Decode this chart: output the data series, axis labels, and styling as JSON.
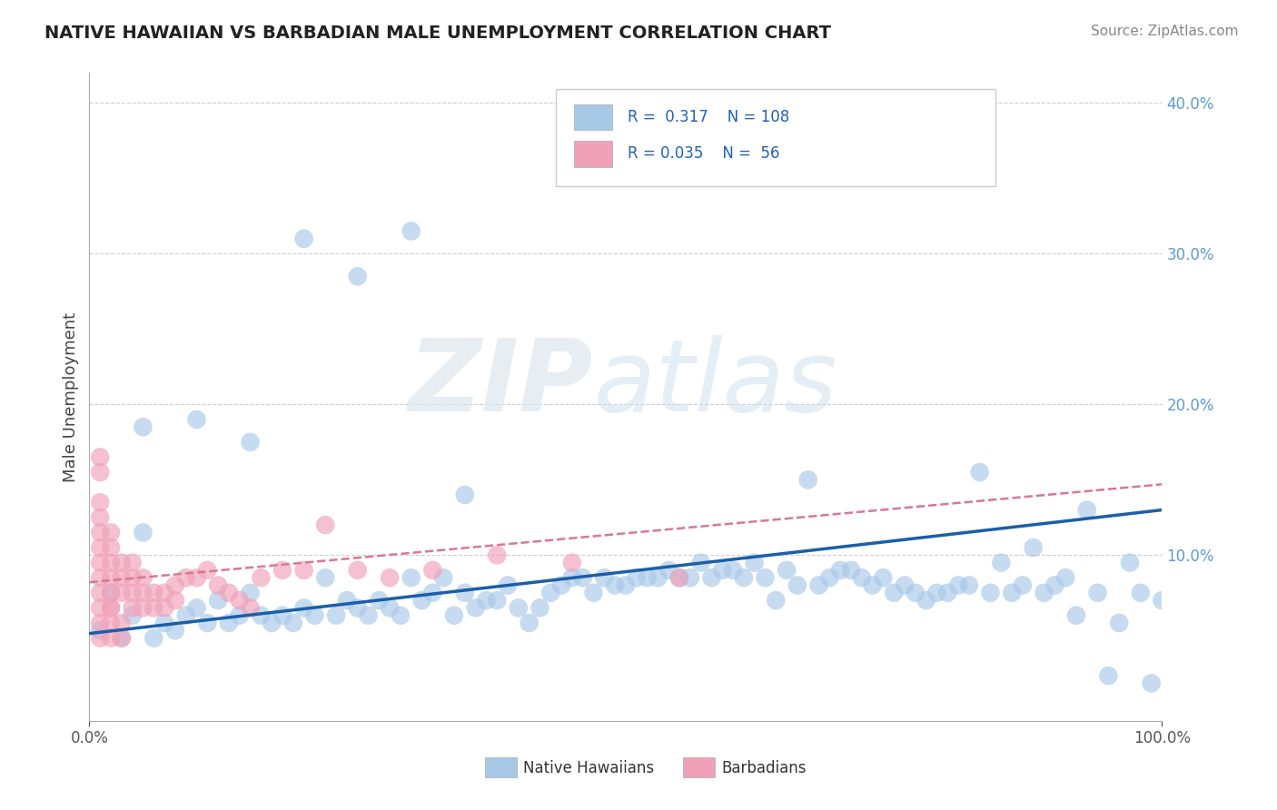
{
  "title": "NATIVE HAWAIIAN VS BARBADIAN MALE UNEMPLOYMENT CORRELATION CHART",
  "source": "Source: ZipAtlas.com",
  "ylabel": "Male Unemployment",
  "xlim": [
    0.0,
    1.0
  ],
  "ylim": [
    -0.01,
    0.42
  ],
  "grid_color": "#c8c8c8",
  "background_color": "#ffffff",
  "color_blue": "#a8c8e8",
  "color_pink": "#f0a0b8",
  "trendline_blue": "#1a5fa8",
  "trendline_pink": "#d87890",
  "label_blue": "Native Hawaiians",
  "label_pink": "Barbadians",
  "blue_slope": 0.082,
  "blue_intercept": 0.048,
  "pink_slope": 0.065,
  "pink_intercept": 0.082,
  "blue_points_x": [
    0.01,
    0.02,
    0.03,
    0.04,
    0.05,
    0.06,
    0.07,
    0.08,
    0.09,
    0.1,
    0.11,
    0.12,
    0.13,
    0.14,
    0.15,
    0.16,
    0.17,
    0.18,
    0.19,
    0.2,
    0.21,
    0.22,
    0.23,
    0.24,
    0.25,
    0.26,
    0.27,
    0.28,
    0.29,
    0.3,
    0.31,
    0.32,
    0.33,
    0.34,
    0.35,
    0.36,
    0.37,
    0.38,
    0.39,
    0.4,
    0.41,
    0.42,
    0.43,
    0.44,
    0.45,
    0.46,
    0.47,
    0.48,
    0.49,
    0.5,
    0.51,
    0.52,
    0.53,
    0.54,
    0.55,
    0.56,
    0.57,
    0.58,
    0.59,
    0.6,
    0.61,
    0.62,
    0.63,
    0.64,
    0.65,
    0.66,
    0.67,
    0.68,
    0.69,
    0.7,
    0.71,
    0.72,
    0.73,
    0.74,
    0.75,
    0.76,
    0.77,
    0.78,
    0.79,
    0.8,
    0.81,
    0.82,
    0.83,
    0.84,
    0.85,
    0.86,
    0.87,
    0.88,
    0.89,
    0.9,
    0.91,
    0.92,
    0.93,
    0.94,
    0.95,
    0.96,
    0.97,
    0.98,
    0.99,
    1.0,
    0.05,
    0.1,
    0.15,
    0.2,
    0.25,
    0.3,
    0.35
  ],
  "blue_points_y": [
    0.05,
    0.075,
    0.045,
    0.06,
    0.115,
    0.045,
    0.055,
    0.05,
    0.06,
    0.065,
    0.055,
    0.07,
    0.055,
    0.06,
    0.075,
    0.06,
    0.055,
    0.06,
    0.055,
    0.065,
    0.06,
    0.085,
    0.06,
    0.07,
    0.065,
    0.06,
    0.07,
    0.065,
    0.06,
    0.085,
    0.07,
    0.075,
    0.085,
    0.06,
    0.075,
    0.065,
    0.07,
    0.07,
    0.08,
    0.065,
    0.055,
    0.065,
    0.075,
    0.08,
    0.085,
    0.085,
    0.075,
    0.085,
    0.08,
    0.08,
    0.085,
    0.085,
    0.085,
    0.09,
    0.085,
    0.085,
    0.095,
    0.085,
    0.09,
    0.09,
    0.085,
    0.095,
    0.085,
    0.07,
    0.09,
    0.08,
    0.15,
    0.08,
    0.085,
    0.09,
    0.09,
    0.085,
    0.08,
    0.085,
    0.075,
    0.08,
    0.075,
    0.07,
    0.075,
    0.075,
    0.08,
    0.08,
    0.155,
    0.075,
    0.095,
    0.075,
    0.08,
    0.105,
    0.075,
    0.08,
    0.085,
    0.06,
    0.13,
    0.075,
    0.02,
    0.055,
    0.095,
    0.075,
    0.015,
    0.07,
    0.185,
    0.19,
    0.175,
    0.31,
    0.285,
    0.315,
    0.14
  ],
  "pink_points_x": [
    0.01,
    0.01,
    0.01,
    0.01,
    0.01,
    0.01,
    0.01,
    0.01,
    0.01,
    0.01,
    0.01,
    0.01,
    0.02,
    0.02,
    0.02,
    0.02,
    0.02,
    0.02,
    0.02,
    0.02,
    0.02,
    0.03,
    0.03,
    0.03,
    0.03,
    0.03,
    0.04,
    0.04,
    0.04,
    0.04,
    0.05,
    0.05,
    0.05,
    0.06,
    0.06,
    0.07,
    0.07,
    0.08,
    0.08,
    0.09,
    0.1,
    0.11,
    0.12,
    0.13,
    0.14,
    0.15,
    0.16,
    0.18,
    0.2,
    0.22,
    0.25,
    0.28,
    0.32,
    0.38,
    0.45,
    0.55
  ],
  "pink_points_y": [
    0.065,
    0.075,
    0.085,
    0.095,
    0.105,
    0.115,
    0.125,
    0.135,
    0.155,
    0.165,
    0.045,
    0.055,
    0.065,
    0.075,
    0.085,
    0.095,
    0.105,
    0.115,
    0.045,
    0.055,
    0.065,
    0.075,
    0.085,
    0.095,
    0.045,
    0.055,
    0.065,
    0.075,
    0.085,
    0.095,
    0.065,
    0.075,
    0.085,
    0.065,
    0.075,
    0.065,
    0.075,
    0.07,
    0.08,
    0.085,
    0.085,
    0.09,
    0.08,
    0.075,
    0.07,
    0.065,
    0.085,
    0.09,
    0.09,
    0.12,
    0.09,
    0.085,
    0.09,
    0.1,
    0.095,
    0.085
  ]
}
